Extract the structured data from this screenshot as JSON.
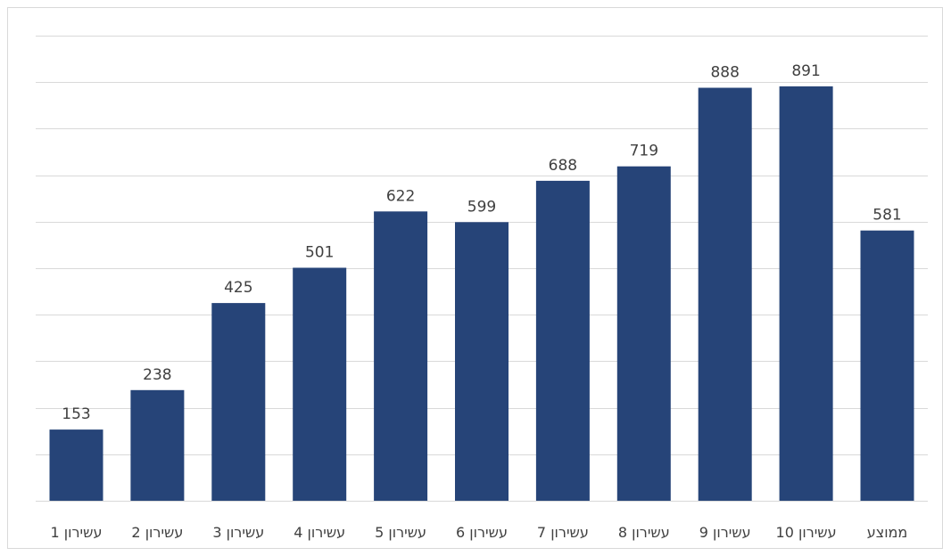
{
  "chart_data": {
    "type": "bar",
    "categories": [
      "עשירון 1",
      "עשירון 2",
      "עשירון 3",
      "עשירון 4",
      "עשירון 5",
      "עשירון 6",
      "עשירון 7",
      "עשירון 8",
      "עשירון 9",
      "עשירון 10",
      "ממוצע"
    ],
    "values": [
      153,
      238,
      425,
      501,
      622,
      599,
      688,
      719,
      888,
      891,
      581
    ],
    "ylim": [
      0,
      1000
    ],
    "grid": true,
    "bar_color": "#264478",
    "gridline_color": "#d9d9d9",
    "label_color": "#404040"
  }
}
